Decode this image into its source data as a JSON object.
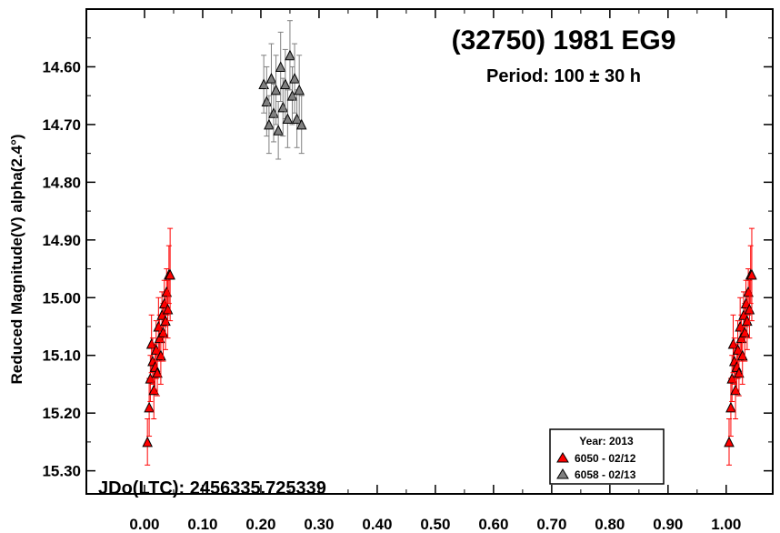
{
  "chart_data": {
    "type": "scatter",
    "title": "(32750) 1981 EG9",
    "subtitle": "Period: 100 ± 30 h",
    "annotation": "JDo(LTC): 2456335.725339",
    "xlabel": "",
    "ylabel": "Reduced Magnitude(V) alpha(2.4°)",
    "xlim": [
      -0.1,
      1.08
    ],
    "ylim": [
      14.5,
      15.34
    ],
    "y_inverted": true,
    "grid": false,
    "x_ticks": [
      "0.00",
      "0.10",
      "0.20",
      "0.30",
      "0.40",
      "0.50",
      "0.60",
      "0.70",
      "0.80",
      "0.90",
      "1.00"
    ],
    "y_ticks": [
      "14.60",
      "14.70",
      "14.80",
      "14.90",
      "15.00",
      "15.10",
      "15.20",
      "15.30"
    ],
    "legend": {
      "title": "Year: 2013",
      "placement": "bottom-right",
      "entries": [
        "6050 - 02/12",
        "6058 - 02/13"
      ]
    },
    "series": [
      {
        "name": "6050 - 02/12",
        "color": "#ff0000",
        "marker": "triangle",
        "x": [
          0.005,
          0.008,
          0.01,
          0.012,
          0.014,
          0.016,
          0.018,
          0.02,
          0.022,
          0.024,
          0.026,
          0.028,
          0.03,
          0.032,
          0.034,
          0.036,
          0.038,
          0.04,
          0.042,
          0.044
        ],
        "y": [
          15.25,
          15.19,
          15.14,
          15.08,
          15.11,
          15.16,
          15.12,
          15.09,
          15.13,
          15.05,
          15.07,
          15.1,
          15.03,
          15.06,
          15.01,
          15.04,
          14.99,
          15.02,
          14.96,
          14.96
        ],
        "err": [
          0.04,
          0.05,
          0.04,
          0.05,
          0.04,
          0.05,
          0.04,
          0.05,
          0.04,
          0.05,
          0.04,
          0.05,
          0.04,
          0.05,
          0.04,
          0.05,
          0.04,
          0.05,
          0.05,
          0.08
        ]
      },
      {
        "name": "6058 - 02/13",
        "color": "#808080",
        "marker": "triangle",
        "x": [
          0.205,
          0.21,
          0.214,
          0.218,
          0.222,
          0.226,
          0.23,
          0.234,
          0.238,
          0.242,
          0.246,
          0.25,
          0.254,
          0.258,
          0.262,
          0.266,
          0.27
        ],
        "y": [
          14.63,
          14.66,
          14.7,
          14.62,
          14.68,
          14.64,
          14.71,
          14.6,
          14.67,
          14.63,
          14.69,
          14.58,
          14.65,
          14.62,
          14.69,
          14.64,
          14.7
        ],
        "err": [
          0.05,
          0.06,
          0.05,
          0.06,
          0.05,
          0.06,
          0.05,
          0.06,
          0.05,
          0.06,
          0.05,
          0.06,
          0.05,
          0.06,
          0.05,
          0.06,
          0.05
        ]
      },
      {
        "name": "6050 - 02/12",
        "color": "#ff0000",
        "marker": "triangle",
        "x": [
          1.005,
          1.008,
          1.01,
          1.012,
          1.014,
          1.016,
          1.018,
          1.02,
          1.022,
          1.024,
          1.026,
          1.028,
          1.03,
          1.032,
          1.034,
          1.036,
          1.038,
          1.04,
          1.042,
          1.044
        ],
        "y": [
          15.25,
          15.19,
          15.14,
          15.08,
          15.11,
          15.16,
          15.12,
          15.09,
          15.13,
          15.05,
          15.07,
          15.1,
          15.03,
          15.06,
          15.01,
          15.04,
          14.99,
          15.02,
          14.96,
          14.96
        ],
        "err": [
          0.04,
          0.05,
          0.04,
          0.05,
          0.04,
          0.05,
          0.04,
          0.05,
          0.04,
          0.05,
          0.04,
          0.05,
          0.04,
          0.05,
          0.04,
          0.05,
          0.04,
          0.05,
          0.05,
          0.08
        ]
      }
    ]
  }
}
